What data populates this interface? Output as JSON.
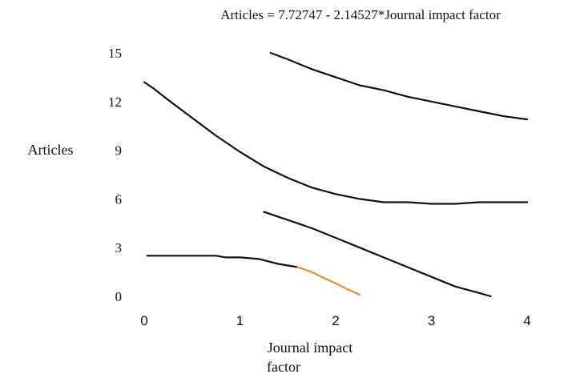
{
  "chart_data": {
    "type": "line",
    "title": "Articles = 7.72747 - 2.14527*Journal impact factor",
    "xlabel_lines": [
      "Journal impact",
      "factor"
    ],
    "ylabel": "Articles",
    "xlim": [
      0,
      4
    ],
    "ylim": [
      0,
      15
    ],
    "xticks": [
      "0",
      "1",
      "2",
      "3",
      "4"
    ],
    "yticks": [
      "0",
      "3",
      "6",
      "9",
      "12",
      "15"
    ],
    "grid": false,
    "colors": {
      "main": "#111111",
      "highlight": "#e0912f"
    },
    "series": [
      {
        "color": "#111111",
        "x": [
          1.32,
          1.5,
          1.75,
          2.0,
          2.25,
          2.5,
          2.75,
          3.0,
          3.25,
          3.5,
          3.75,
          4.0
        ],
        "y": [
          15.0,
          14.6,
          14.0,
          13.5,
          13.0,
          12.7,
          12.3,
          12.0,
          11.7,
          11.4,
          11.1,
          10.9
        ]
      },
      {
        "color": "#111111",
        "x": [
          0.0,
          0.1,
          0.25,
          0.5,
          0.75,
          1.0,
          1.25,
          1.5,
          1.75,
          2.0,
          2.25,
          2.5,
          2.75,
          3.0,
          3.25,
          3.5,
          3.75,
          4.0
        ],
        "y": [
          13.2,
          12.8,
          12.1,
          11.0,
          9.9,
          8.9,
          8.0,
          7.3,
          6.7,
          6.3,
          6.0,
          5.8,
          5.8,
          5.7,
          5.7,
          5.8,
          5.8,
          5.8
        ]
      },
      {
        "color": "#111111",
        "x": [
          1.25,
          1.5,
          1.75,
          2.0,
          2.25,
          2.5,
          2.75,
          3.0,
          3.25,
          3.5,
          3.62
        ],
        "y": [
          5.2,
          4.7,
          4.2,
          3.6,
          3.0,
          2.4,
          1.8,
          1.2,
          0.6,
          0.2,
          0.0
        ]
      },
      {
        "color": "#111111",
        "x": [
          0.03,
          0.25,
          0.5,
          0.75,
          0.85,
          1.0,
          1.2,
          1.4,
          1.6
        ],
        "y": [
          2.5,
          2.5,
          2.5,
          2.5,
          2.4,
          2.4,
          2.3,
          2.0,
          1.8
        ]
      },
      {
        "color": "#e0912f",
        "x": [
          1.6,
          1.75,
          1.85,
          2.0,
          2.1,
          2.25
        ],
        "y": [
          1.8,
          1.5,
          1.2,
          0.8,
          0.5,
          0.1
        ]
      }
    ]
  }
}
